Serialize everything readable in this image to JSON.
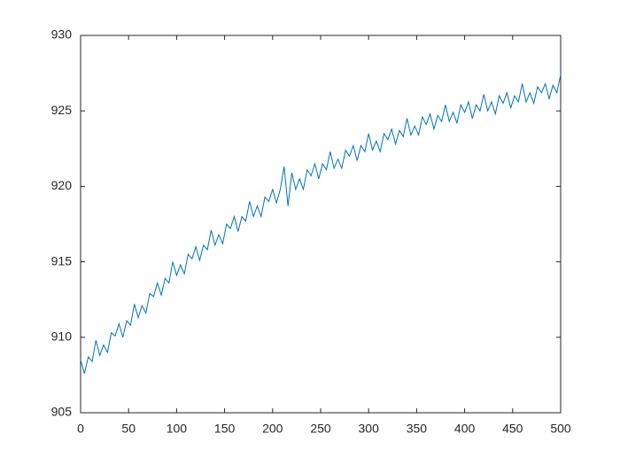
{
  "chart_data": {
    "type": "line",
    "x": [
      0,
      4,
      8,
      12,
      16,
      20,
      24,
      28,
      32,
      36,
      40,
      44,
      48,
      52,
      56,
      60,
      64,
      68,
      72,
      76,
      80,
      84,
      88,
      92,
      96,
      100,
      104,
      108,
      112,
      116,
      120,
      124,
      128,
      132,
      136,
      140,
      144,
      148,
      152,
      156,
      160,
      164,
      168,
      172,
      176,
      180,
      184,
      188,
      192,
      196,
      200,
      204,
      208,
      212,
      216,
      220,
      224,
      228,
      232,
      236,
      240,
      244,
      248,
      252,
      256,
      260,
      264,
      268,
      272,
      276,
      280,
      284,
      288,
      292,
      296,
      300,
      304,
      308,
      312,
      316,
      320,
      324,
      328,
      332,
      336,
      340,
      344,
      348,
      352,
      356,
      360,
      364,
      368,
      372,
      376,
      380,
      384,
      388,
      392,
      396,
      400,
      404,
      408,
      412,
      416,
      420,
      424,
      428,
      432,
      436,
      440,
      444,
      448,
      452,
      456,
      460,
      464,
      468,
      472,
      476,
      480,
      484,
      488,
      492,
      496,
      500
    ],
    "series": [
      {
        "color": "#0072bd",
        "values": [
          908.5,
          907.6,
          908.7,
          908.4,
          909.8,
          908.8,
          909.5,
          909.0,
          910.3,
          910.1,
          910.9,
          910.0,
          911.1,
          910.8,
          912.2,
          911.3,
          912.1,
          911.6,
          912.9,
          912.7,
          913.6,
          912.8,
          913.9,
          913.6,
          915.0,
          914.1,
          914.8,
          914.2,
          915.5,
          915.2,
          916.0,
          915.1,
          916.1,
          915.8,
          917.1,
          916.1,
          916.8,
          916.2,
          917.5,
          917.2,
          918.0,
          917.0,
          918.0,
          917.7,
          919.0,
          918.0,
          918.7,
          918.0,
          919.3,
          919.0,
          919.8,
          918.9,
          919.8,
          921.3,
          918.7,
          920.9,
          919.8,
          920.5,
          919.8,
          921.1,
          920.7,
          921.5,
          920.5,
          921.5,
          921.1,
          922.3,
          921.2,
          921.8,
          921.2,
          922.4,
          922.0,
          922.7,
          921.7,
          922.7,
          922.3,
          923.5,
          922.4,
          923.0,
          922.3,
          923.5,
          923.1,
          923.8,
          922.8,
          923.7,
          923.3,
          924.5,
          923.4,
          924.0,
          923.4,
          924.6,
          924.1,
          924.8,
          923.8,
          924.7,
          924.3,
          925.4,
          924.3,
          924.9,
          924.2,
          925.4,
          924.9,
          925.6,
          924.5,
          925.4,
          925.0,
          926.1,
          925.0,
          925.6,
          924.8,
          926.0,
          925.5,
          926.2,
          925.2,
          926.0,
          925.6,
          926.8,
          925.6,
          926.2,
          925.5,
          926.6,
          926.2,
          926.8,
          925.8,
          926.7,
          926.2,
          927.4
        ]
      }
    ],
    "xlim": [
      0,
      500
    ],
    "xticks": [
      0,
      50,
      100,
      150,
      200,
      250,
      300,
      350,
      400,
      450,
      500
    ],
    "ylim": [
      905,
      930
    ],
    "yticks": [
      905,
      910,
      915,
      920,
      925,
      930
    ]
  }
}
